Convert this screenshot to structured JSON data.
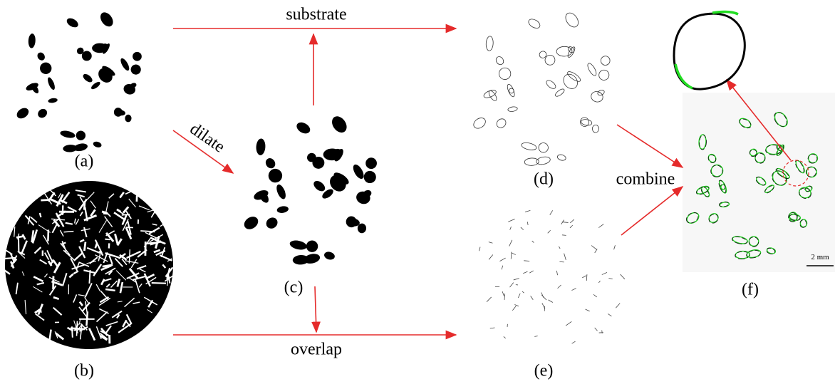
{
  "panels": [
    {
      "label": "(a)"
    },
    {
      "label": "(b)"
    },
    {
      "label": "(c)"
    },
    {
      "label": "(d)"
    },
    {
      "label": "(e)"
    },
    {
      "label": "(f)"
    }
  ],
  "arrows": [
    {
      "label": "substrate"
    },
    {
      "label": "dilate"
    },
    {
      "label": "overlap"
    },
    {
      "label": "combine"
    }
  ],
  "scale_bar": {
    "label": "2 mm"
  }
}
